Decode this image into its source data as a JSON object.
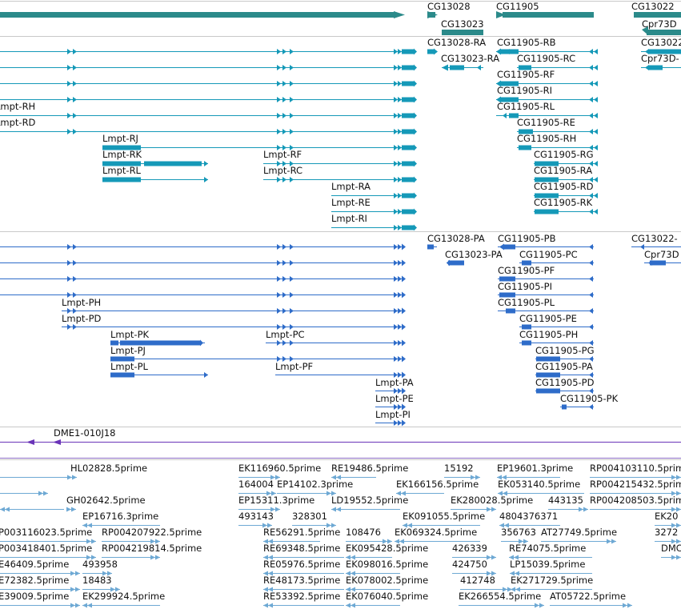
{
  "colors": {
    "track1": "#2b8a8a",
    "track2": "#1599b8",
    "track3": "#2e6cc9",
    "track4": "#6a34b8",
    "track5": "#6ea9d4",
    "separator": "#c9c9c9"
  },
  "sections": {
    "gene_track": {
      "labels": [
        "CG13028",
        "CG11905",
        "CG13022",
        "CG13023",
        "Cpr73D"
      ]
    },
    "transcript_track_1": {
      "labels": [
        "CG13028-RA",
        "CG11905-RB",
        "CG13022-",
        "CG13023-RA",
        "CG11905-RC",
        "Cpr73D-",
        "CG11905-RF",
        "CG11905-RI",
        "Lmpt-RH",
        "CG11905-RL",
        "Lmpt-RD",
        "CG11905-RE",
        "Lmpt-RJ",
        "CG11905-RH",
        "Lmpt-RK",
        "Lmpt-RF",
        "CG11905-RG",
        "Lmpt-RL",
        "Lmpt-RC",
        "CG11905-RA",
        "Lmpt-RA",
        "CG11905-RD",
        "Lmpt-RE",
        "CG11905-RK",
        "Lmpt-RI"
      ]
    },
    "transcript_track_2": {
      "labels": [
        "CG13028-PA",
        "CG11905-PB",
        "CG13022-",
        "CG13023-PA",
        "CG11905-PC",
        "Cpr73D",
        "CG11905-PF",
        "CG11905-PI",
        "Lmpt-PH",
        "CG11905-PL",
        "Lmpt-PD",
        "CG11905-PE",
        "Lmpt-PK",
        "Lmpt-PC",
        "CG11905-PH",
        "Lmpt-PJ",
        "CG11905-PG",
        "Lmpt-PL",
        "Lmpt-PF",
        "CG11905-PA",
        "Lmpt-PA",
        "CG11905-PD",
        "Lmpt-PE",
        "CG11905-PK",
        "Lmpt-PI"
      ]
    },
    "clone_track": {
      "labels": [
        "DME1-010J18"
      ]
    },
    "est_track": {
      "labels": [
        "HL02828.5prime",
        "EK116960.5prime",
        "RE19486.5prime",
        "15192",
        "EP19601.3prime",
        "RP004103110.5prime",
        "164004",
        "EP14102.3prime",
        "EK166156.5prime",
        "EK053140.5prime",
        "RP004215432.5prime",
        "GH02642.5prime",
        "EP15311.3prime",
        "LD19552.5prime",
        "EK280028.5prime",
        "443135",
        "RP004208503.5prime",
        "EP16716.3prime",
        "493143",
        "328301",
        "EK091055.5prime",
        "4804376371",
        "EK20",
        "P003116023.5prime",
        "RP004207922.5prime",
        "RE56291.5prime",
        "108476",
        "EK069324.5prime",
        "356763",
        "AT27749.5prime",
        "3272",
        "P003418401.5prime",
        "RP004219814.5prime",
        "RE69348.5prime",
        "EK095428.5prime",
        "426339",
        "RE74075.5prime",
        "DMC",
        "E46409.5prime",
        "493958",
        "RE05976.5prime",
        "EK098016.5prime",
        "424750",
        "LP15039.5prime",
        "E72382.5prime",
        "18483",
        "RE48173.5prime",
        "EK078002.5prime",
        "412748",
        "EK271729.5prime",
        "E39009.5prime",
        "EK299924.5prime",
        "RE53392.5prime",
        "EK076040.5prime",
        "EK266554.5prime",
        "AT05722.5prime"
      ]
    }
  }
}
